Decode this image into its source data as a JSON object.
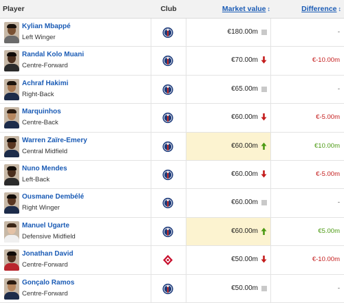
{
  "columns": {
    "player": "Player",
    "club": "Club",
    "market_value": "Market value",
    "difference": "Difference"
  },
  "sort_arrow": "↕",
  "colors": {
    "link": "#1a5bb5",
    "highlight": "#fcf3d0",
    "negative": "#c41d1d",
    "positive": "#4c9a13",
    "psg_blue": "#1c3a7a",
    "psg_red": "#d52b1e",
    "lille_red": "#c8102e"
  },
  "rows": [
    {
      "name": "Kylian Mbappé",
      "position": "Left Winger",
      "club_icon": "psg-crest-icon",
      "market_value": "€180.00m",
      "trend": "none",
      "difference": "-",
      "diff_type": "neutral",
      "highlight": false,
      "skin": "#7a5234",
      "hair": "#1a120c",
      "shirt": "#6b6b6b"
    },
    {
      "name": "Randal Kolo Muani",
      "position": "Centre-Forward",
      "club_icon": "psg-crest-icon",
      "market_value": "€70.00m",
      "trend": "down",
      "difference": "€-10.00m",
      "diff_type": "neg",
      "highlight": false,
      "skin": "#4a2e1d",
      "hair": "#0f0a07",
      "shirt": "#2b2b2b"
    },
    {
      "name": "Achraf Hakimi",
      "position": "Right-Back",
      "club_icon": "psg-crest-icon",
      "market_value": "€65.00m",
      "trend": "none",
      "difference": "-",
      "diff_type": "neutral",
      "highlight": false,
      "skin": "#a57650",
      "hair": "#1b130c",
      "shirt": "#1d2c4a"
    },
    {
      "name": "Marquinhos",
      "position": "Centre-Back",
      "club_icon": "psg-crest-icon",
      "market_value": "€60.00m",
      "trend": "down",
      "difference": "€-5.00m",
      "diff_type": "neg",
      "highlight": false,
      "skin": "#b7875f",
      "hair": "#2a1a0f",
      "shirt": "#1d2c4a"
    },
    {
      "name": "Warren Zaïre-Emery",
      "position": "Central Midfield",
      "club_icon": "psg-crest-icon",
      "market_value": "€60.00m",
      "trend": "up",
      "difference": "€10.00m",
      "diff_type": "pos",
      "highlight": true,
      "skin": "#5a3722",
      "hair": "#120c08",
      "shirt": "#1d2c4a"
    },
    {
      "name": "Nuno Mendes",
      "position": "Left-Back",
      "club_icon": "psg-crest-icon",
      "market_value": "€60.00m",
      "trend": "down",
      "difference": "€-5.00m",
      "diff_type": "neg",
      "highlight": false,
      "skin": "#4a2e1d",
      "hair": "#0f0a07",
      "shirt": "#2b2b2b"
    },
    {
      "name": "Ousmane Dembélé",
      "position": "Right Winger",
      "club_icon": "psg-crest-icon",
      "market_value": "€60.00m",
      "trend": "none",
      "difference": "-",
      "diff_type": "neutral",
      "highlight": false,
      "skin": "#5a3722",
      "hair": "#120c08",
      "shirt": "#1d2c4a"
    },
    {
      "name": "Manuel Ugarte",
      "position": "Defensive Midfield",
      "club_icon": "psg-crest-icon",
      "market_value": "€60.00m",
      "trend": "up",
      "difference": "€5.00m",
      "diff_type": "pos",
      "highlight": true,
      "skin": "#e4c2a6",
      "hair": "#3a2616",
      "shirt": "#f0f0f0"
    },
    {
      "name": "Jonathan David",
      "position": "Centre-Forward",
      "club_icon": "lille-crest-icon",
      "market_value": "€50.00m",
      "trend": "down",
      "difference": "€-10.00m",
      "diff_type": "neg",
      "highlight": false,
      "skin": "#4a2e1d",
      "hair": "#0f0a07",
      "shirt": "#b9262d"
    },
    {
      "name": "Gonçalo Ramos",
      "position": "Centre-Forward",
      "club_icon": "psg-crest-icon",
      "market_value": "€50.00m",
      "trend": "none",
      "difference": "-",
      "diff_type": "neutral",
      "highlight": false,
      "skin": "#b7875f",
      "hair": "#2a1a0f",
      "shirt": "#1d2c4a"
    }
  ]
}
